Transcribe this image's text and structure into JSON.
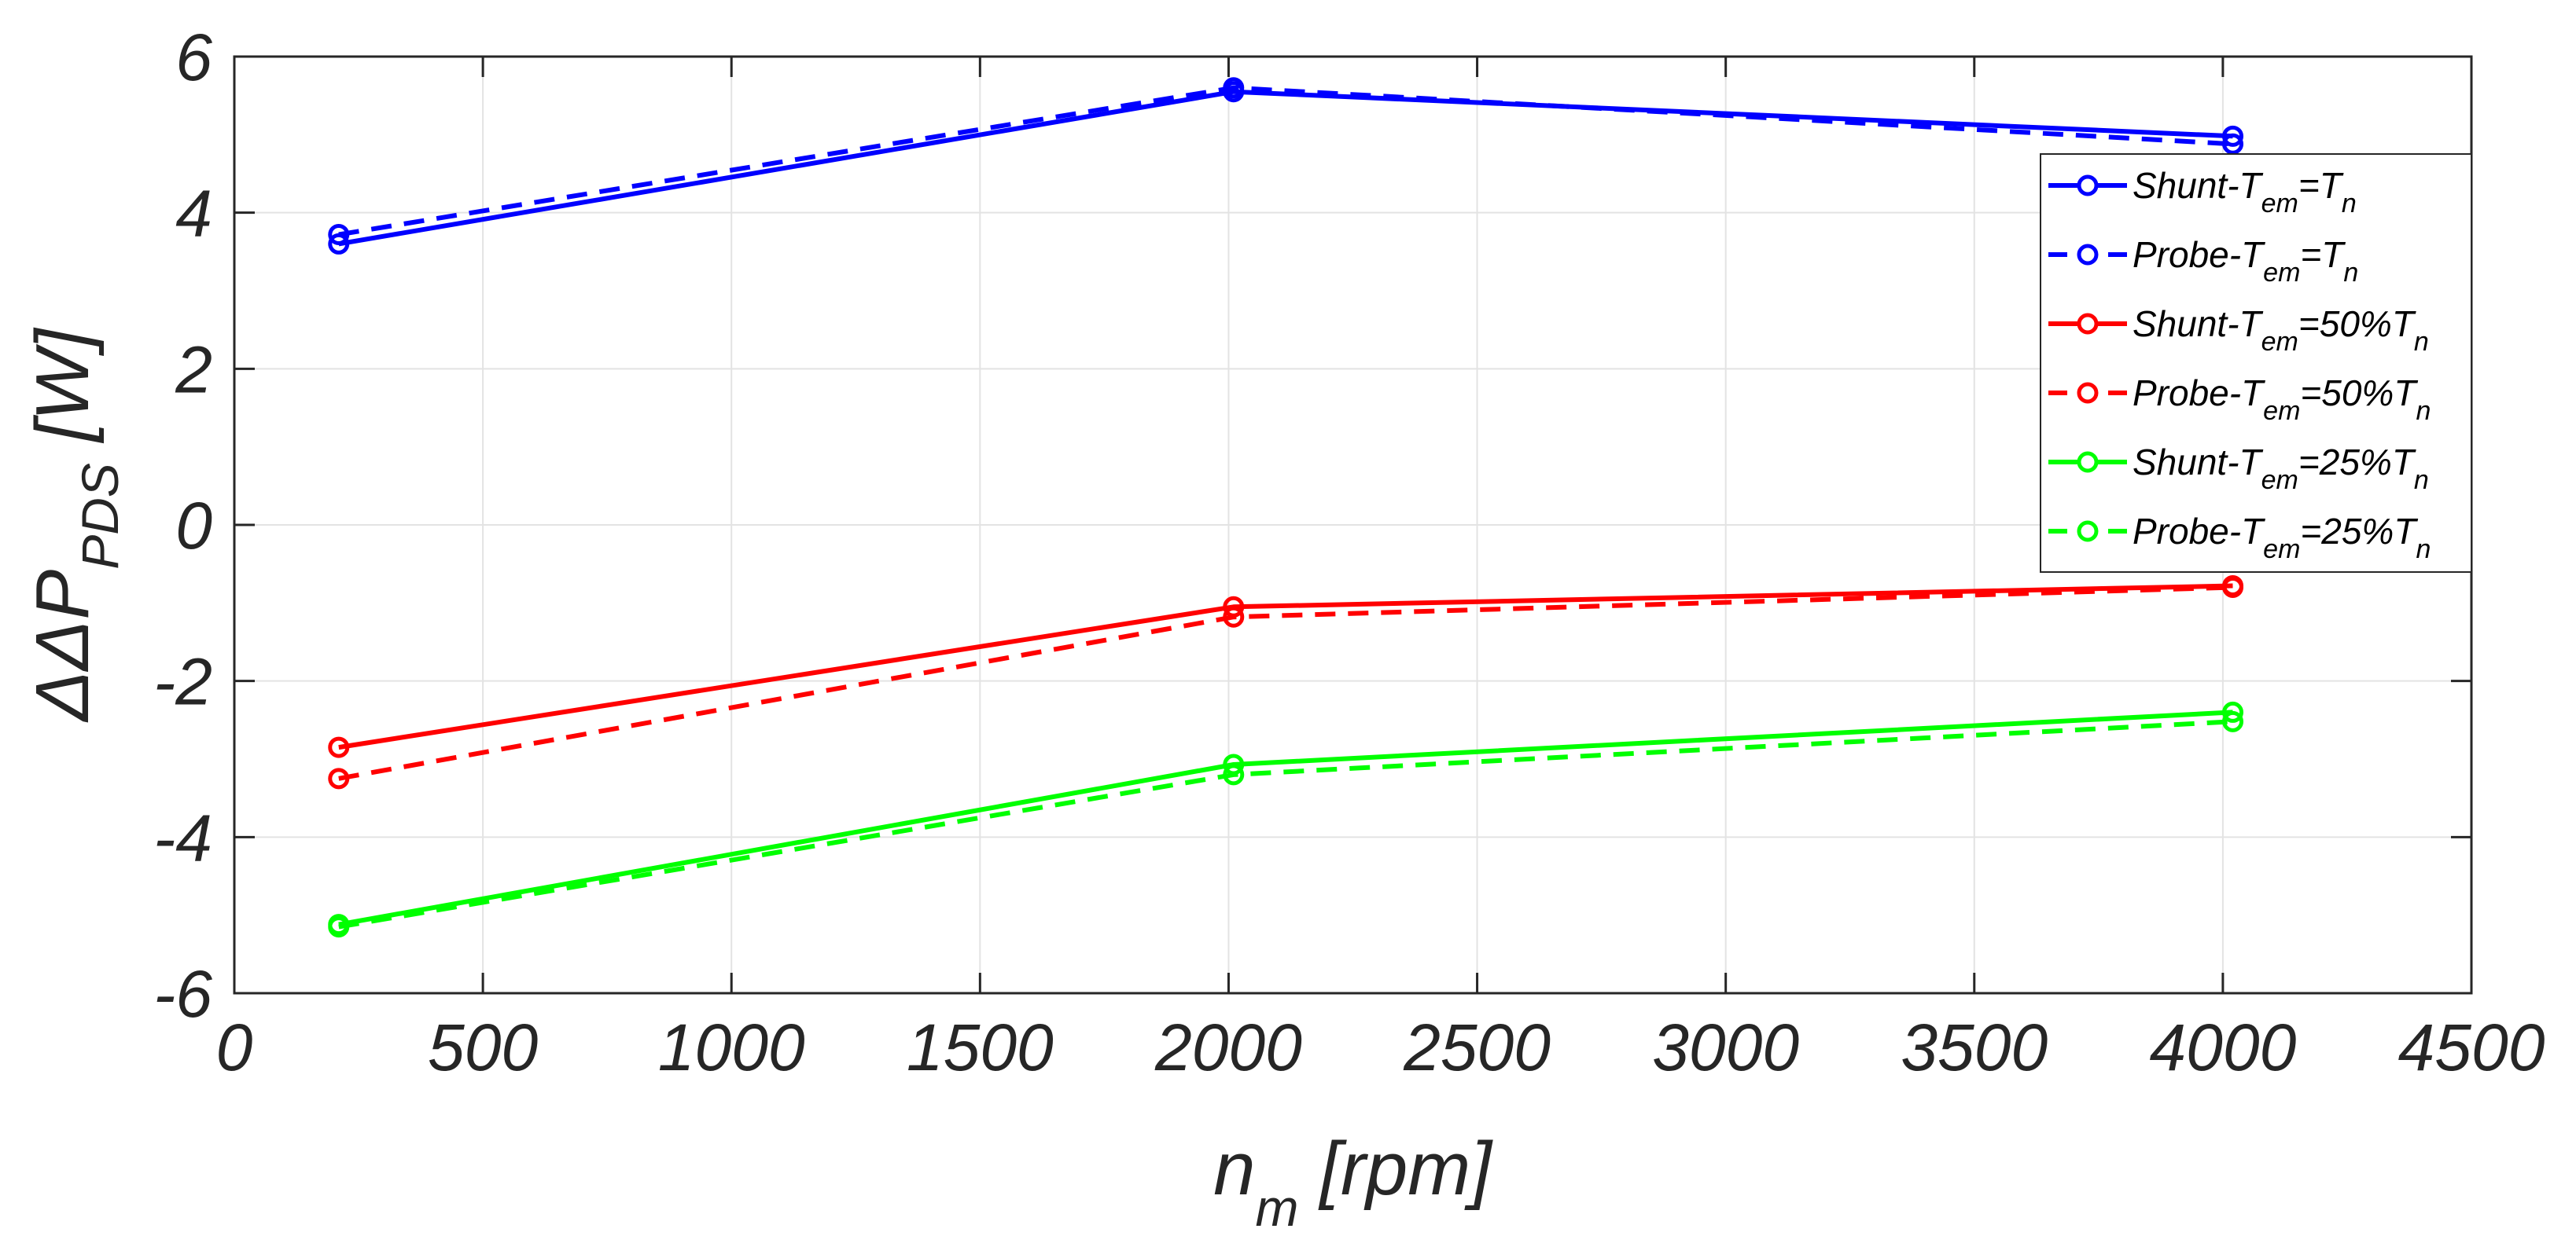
{
  "chart_data": {
    "type": "line",
    "xlabel": {
      "main": "n",
      "sub": "m",
      "rest": " [rpm]"
    },
    "ylabel": {
      "prefix": "ΔΔP",
      "sub": "PDS",
      "rest": " [W]"
    },
    "xlim": [
      0,
      4500
    ],
    "ylim": [
      -6,
      6
    ],
    "xticks": [
      0,
      500,
      1000,
      1500,
      2000,
      2500,
      3000,
      3500,
      4000,
      4500
    ],
    "yticks": [
      -6,
      -4,
      -2,
      0,
      2,
      4,
      6
    ],
    "grid": true,
    "legend_position": "top-right",
    "series": [
      {
        "name": "Shunt-Tem=Tn",
        "label": {
          "pre": "Shunt-T",
          "sub1": "em",
          "mid": "=",
          "pct": "",
          "t": "T",
          "sub2": "n"
        },
        "color": "#0000ff",
        "dash": "solid",
        "x": [
          210,
          2010,
          4020
        ],
        "y": [
          3.6,
          5.55,
          4.98
        ]
      },
      {
        "name": "Probe-Tem=Tn",
        "label": {
          "pre": "Probe-T",
          "sub1": "em",
          "mid": "=",
          "pct": "",
          "t": "T",
          "sub2": "n"
        },
        "color": "#0000ff",
        "dash": "dashed",
        "x": [
          210,
          2010,
          4020
        ],
        "y": [
          3.72,
          5.6,
          4.88
        ]
      },
      {
        "name": "Shunt-Tem=50%Tn",
        "label": {
          "pre": "Shunt-T",
          "sub1": "em",
          "mid": "=",
          "pct": "50%",
          "t": "T",
          "sub2": "n"
        },
        "color": "#ff0000",
        "dash": "solid",
        "x": [
          210,
          2010,
          4020
        ],
        "y": [
          -2.85,
          -1.05,
          -0.78
        ]
      },
      {
        "name": "Probe-Tem=50%Tn",
        "label": {
          "pre": "Probe-T",
          "sub1": "em",
          "mid": "=",
          "pct": "50%",
          "t": "T",
          "sub2": "n"
        },
        "color": "#ff0000",
        "dash": "dashed",
        "x": [
          210,
          2010,
          4020
        ],
        "y": [
          -3.25,
          -1.18,
          -0.8
        ]
      },
      {
        "name": "Shunt-Tem=25%Tn",
        "label": {
          "pre": "Shunt-T",
          "sub1": "em",
          "mid": "=",
          "pct": "25%",
          "t": "T",
          "sub2": "n"
        },
        "color": "#00ff00",
        "dash": "solid",
        "x": [
          210,
          2010,
          4020
        ],
        "y": [
          -5.12,
          -3.07,
          -2.4
        ]
      },
      {
        "name": "Probe-Tem=25%Tn",
        "label": {
          "pre": "Probe-T",
          "sub1": "em",
          "mid": "=",
          "pct": "25%",
          "t": "T",
          "sub2": "n"
        },
        "color": "#00ff00",
        "dash": "dashed",
        "x": [
          210,
          2010,
          4020
        ],
        "y": [
          -5.15,
          -3.2,
          -2.52
        ]
      }
    ]
  }
}
